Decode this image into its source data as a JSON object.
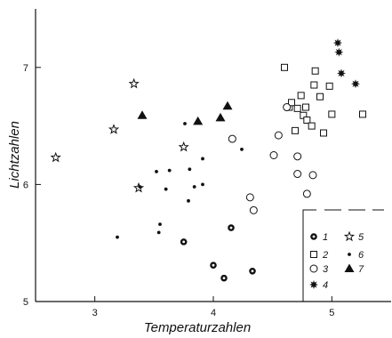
{
  "chart_data": {
    "type": "scatter",
    "title": "",
    "xlabel": "Temperaturzahlen",
    "ylabel": "Lichtzahlen",
    "xlim": [
      2.5,
      5.5
    ],
    "ylim": [
      5,
      7.5
    ],
    "x_ticks": [
      "3",
      "4",
      "5"
    ],
    "y_ticks": [
      "5",
      "6",
      "7"
    ],
    "grid": false,
    "legend_position": "bottom-right",
    "series": [
      {
        "name": "1",
        "marker": "thick-circle",
        "points": [
          [
            3.75,
            5.51
          ],
          [
            4.0,
            5.31
          ],
          [
            4.09,
            5.2
          ],
          [
            4.15,
            5.63
          ],
          [
            4.33,
            5.26
          ]
        ]
      },
      {
        "name": "2",
        "marker": "open-square",
        "points": [
          [
            4.6,
            7.0
          ],
          [
            4.64,
            6.66
          ],
          [
            4.66,
            6.7
          ],
          [
            4.69,
            6.46
          ],
          [
            4.71,
            6.65
          ],
          [
            4.74,
            6.76
          ],
          [
            4.76,
            6.59
          ],
          [
            4.78,
            6.66
          ],
          [
            4.79,
            6.55
          ],
          [
            4.83,
            6.5
          ],
          [
            4.85,
            6.85
          ],
          [
            4.86,
            6.97
          ],
          [
            4.9,
            6.75
          ],
          [
            4.93,
            6.44
          ],
          [
            4.98,
            6.84
          ],
          [
            5.0,
            6.6
          ],
          [
            5.26,
            6.6
          ]
        ]
      },
      {
        "name": "3",
        "marker": "open-circle",
        "points": [
          [
            4.16,
            6.39
          ],
          [
            4.31,
            5.89
          ],
          [
            4.34,
            5.78
          ],
          [
            4.51,
            6.25
          ],
          [
            4.55,
            6.42
          ],
          [
            4.62,
            6.66
          ],
          [
            4.71,
            6.09
          ],
          [
            4.71,
            6.24
          ],
          [
            4.79,
            5.92
          ],
          [
            4.84,
            6.08
          ]
        ]
      },
      {
        "name": "4",
        "marker": "burst",
        "points": [
          [
            5.05,
            7.21
          ],
          [
            5.06,
            7.13
          ],
          [
            5.08,
            6.95
          ],
          [
            5.2,
            6.86
          ]
        ]
      },
      {
        "name": "5",
        "marker": "open-star",
        "points": [
          [
            2.67,
            6.23
          ],
          [
            3.16,
            6.47
          ],
          [
            3.33,
            6.86
          ],
          [
            3.37,
            5.97
          ],
          [
            3.75,
            6.32
          ]
        ]
      },
      {
        "name": "6",
        "marker": "small-dot",
        "points": [
          [
            3.19,
            5.55
          ],
          [
            3.38,
            5.98
          ],
          [
            3.52,
            6.11
          ],
          [
            3.54,
            5.59
          ],
          [
            3.55,
            5.66
          ],
          [
            3.6,
            5.96
          ],
          [
            3.63,
            6.12
          ],
          [
            3.76,
            6.52
          ],
          [
            3.79,
            5.86
          ],
          [
            3.8,
            6.13
          ],
          [
            3.84,
            5.98
          ],
          [
            3.91,
            6.22
          ],
          [
            3.91,
            6.0
          ],
          [
            4.24,
            6.3
          ]
        ]
      },
      {
        "name": "7",
        "marker": "filled-triangle",
        "points": [
          [
            3.4,
            6.59
          ],
          [
            3.87,
            6.54
          ],
          [
            4.06,
            6.57
          ],
          [
            4.12,
            6.67
          ]
        ]
      }
    ]
  }
}
